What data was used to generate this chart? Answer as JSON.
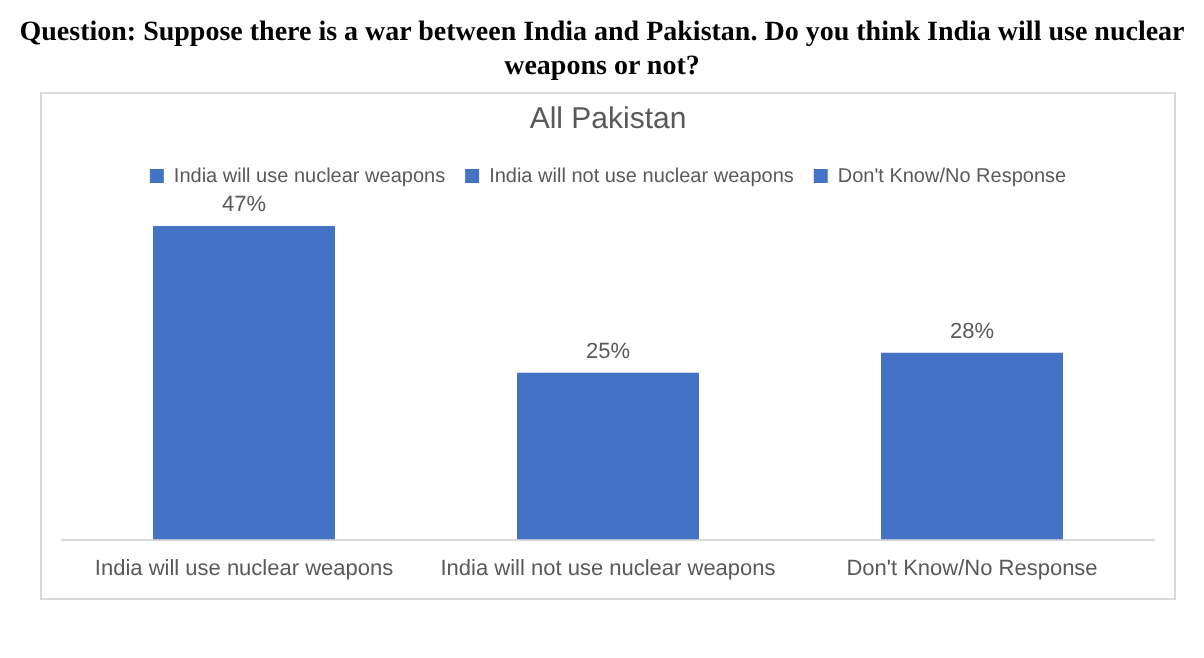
{
  "chart_data": {
    "type": "bar",
    "title": "Question: Suppose there is a war between India and Pakistan. Do you think India will use nuclear weapons or not?",
    "subtitle": "All Pakistan",
    "categories": [
      "India will use nuclear weapons",
      "India will not use nuclear weapons",
      "Don't Know/No Response"
    ],
    "series": [
      {
        "name": "India will use nuclear weapons",
        "color": "#4472c4",
        "values": [
          47,
          null,
          null
        ],
        "value_labels": [
          "47%",
          null,
          null
        ]
      },
      {
        "name": "India will not use nuclear weapons",
        "color": "#4472c4",
        "values": [
          null,
          25,
          null
        ],
        "value_labels": [
          null,
          "25%",
          null
        ]
      },
      {
        "name": "Don't Know/No Response",
        "color": "#4472c4",
        "values": [
          null,
          null,
          28
        ],
        "value_labels": [
          null,
          null,
          "28%"
        ]
      }
    ],
    "legend": "top",
    "grid": false
  }
}
